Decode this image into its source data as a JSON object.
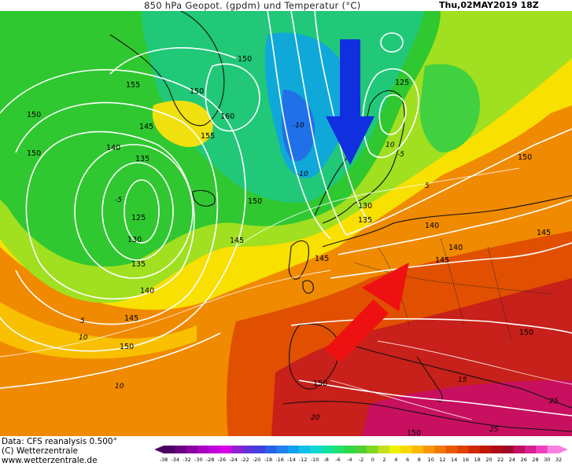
{
  "header": {
    "title": "850 hPa Geopot. (gpdm) und Temperatur (°C)",
    "datetime": "Thu,02MAY2019 18Z"
  },
  "footer": {
    "data_source": "Data: CFS reanalysis 0.500°",
    "copyright": "(C) Wetterzentrale",
    "website": "www.wetterzentrale.de"
  },
  "map": {
    "geopotential_labels": [
      "150",
      "155",
      "150",
      "150",
      "160",
      "155",
      "145",
      "140",
      "135",
      "150",
      "125",
      "130",
      "135",
      "140",
      "145",
      "150",
      "125",
      "130",
      "135",
      "140",
      "145",
      "150",
      "145",
      "140",
      "150",
      "145",
      "145",
      "150",
      "150",
      "150"
    ],
    "temperature_labels": [
      "10",
      "-5",
      "-10",
      "5",
      "-10",
      "10",
      "5",
      "-5",
      "10",
      "15",
      "20",
      "25",
      "25"
    ],
    "arrows": [
      {
        "name": "blue",
        "color": "#1030e0",
        "direction": "south"
      },
      {
        "name": "red",
        "color": "#ee1111",
        "direction": "north-east"
      }
    ]
  },
  "scale": {
    "labels": [
      "-38",
      "-34",
      "-32",
      "-30",
      "-28",
      "-26",
      "-24",
      "-22",
      "-20",
      "-18",
      "-16",
      "-14",
      "-12",
      "-10",
      "-8",
      "-6",
      "-4",
      "-2",
      "0",
      "2",
      "4",
      "6",
      "8",
      "10",
      "12",
      "14",
      "16",
      "18",
      "20",
      "22",
      "24",
      "26",
      "28",
      "30",
      "32"
    ],
    "colors": [
      "#4a0060",
      "#6a0080",
      "#8a00a0",
      "#a800c0",
      "#c000d8",
      "#d800e8",
      "#9020d0",
      "#6030d8",
      "#4040e0",
      "#2860e8",
      "#2080f0",
      "#10a0f0",
      "#10c0e8",
      "#10d8d0",
      "#10e0a0",
      "#20e070",
      "#30d848",
      "#50d030",
      "#80d820",
      "#c0e020",
      "#f0f000",
      "#f8d800",
      "#f8b800",
      "#f89800",
      "#f07800",
      "#e85800",
      "#e04000",
      "#d02800",
      "#c01800",
      "#b00c18",
      "#a00828",
      "#c01060",
      "#d82090",
      "#f040c0",
      "#f880e0"
    ]
  }
}
